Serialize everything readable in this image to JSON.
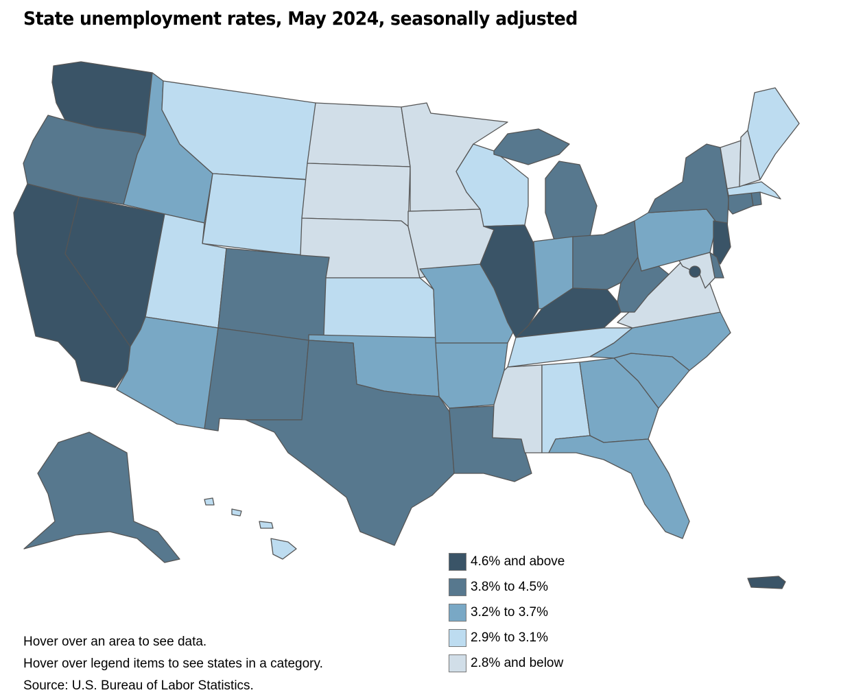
{
  "title": "State unemployment rates, May 2024, seasonally adjusted",
  "legend": [
    {
      "label": "4.6% and above",
      "color": "#3a5467"
    },
    {
      "label": "3.8% to 4.5%",
      "color": "#57788e"
    },
    {
      "label": "3.2% to 3.7%",
      "color": "#79a8c5"
    },
    {
      "label": "2.9% to 3.1%",
      "color": "#bddcf0"
    },
    {
      "label": "2.8% and below",
      "color": "#d1dee8"
    }
  ],
  "notes": {
    "hover_area": "Hover over an area to see data.",
    "hover_legend": "Hover over legend items to see states in a category.",
    "source": "Source: U.S. Bureau of Labor Statistics."
  },
  "states": {
    "WA": 0,
    "OR": 1,
    "CA": 0,
    "NV": 0,
    "ID": 2,
    "MT": 3,
    "WY": 3,
    "UT": 3,
    "AZ": 2,
    "CO": 1,
    "NM": 1,
    "ND": 4,
    "SD": 4,
    "NE": 4,
    "KS": 3,
    "OK": 2,
    "TX": 1,
    "MN": 4,
    "IA": 4,
    "MO": 2,
    "AR": 2,
    "LA": 1,
    "WI": 3,
    "IL": 0,
    "MI": 1,
    "IN": 2,
    "OH": 1,
    "KY": 0,
    "TN": 3,
    "MS": 4,
    "AL": 3,
    "GA": 2,
    "FL": 2,
    "SC": 2,
    "NC": 2,
    "VA": 4,
    "WV": 1,
    "PA": 2,
    "NY": 1,
    "NJ": 0,
    "DE": 1,
    "MD": 4,
    "DC": 0,
    "CT": 1,
    "RI": 1,
    "MA": 3,
    "VT": 4,
    "NH": 4,
    "ME": 3,
    "AK": 1,
    "HI": 3,
    "PR": 0
  }
}
